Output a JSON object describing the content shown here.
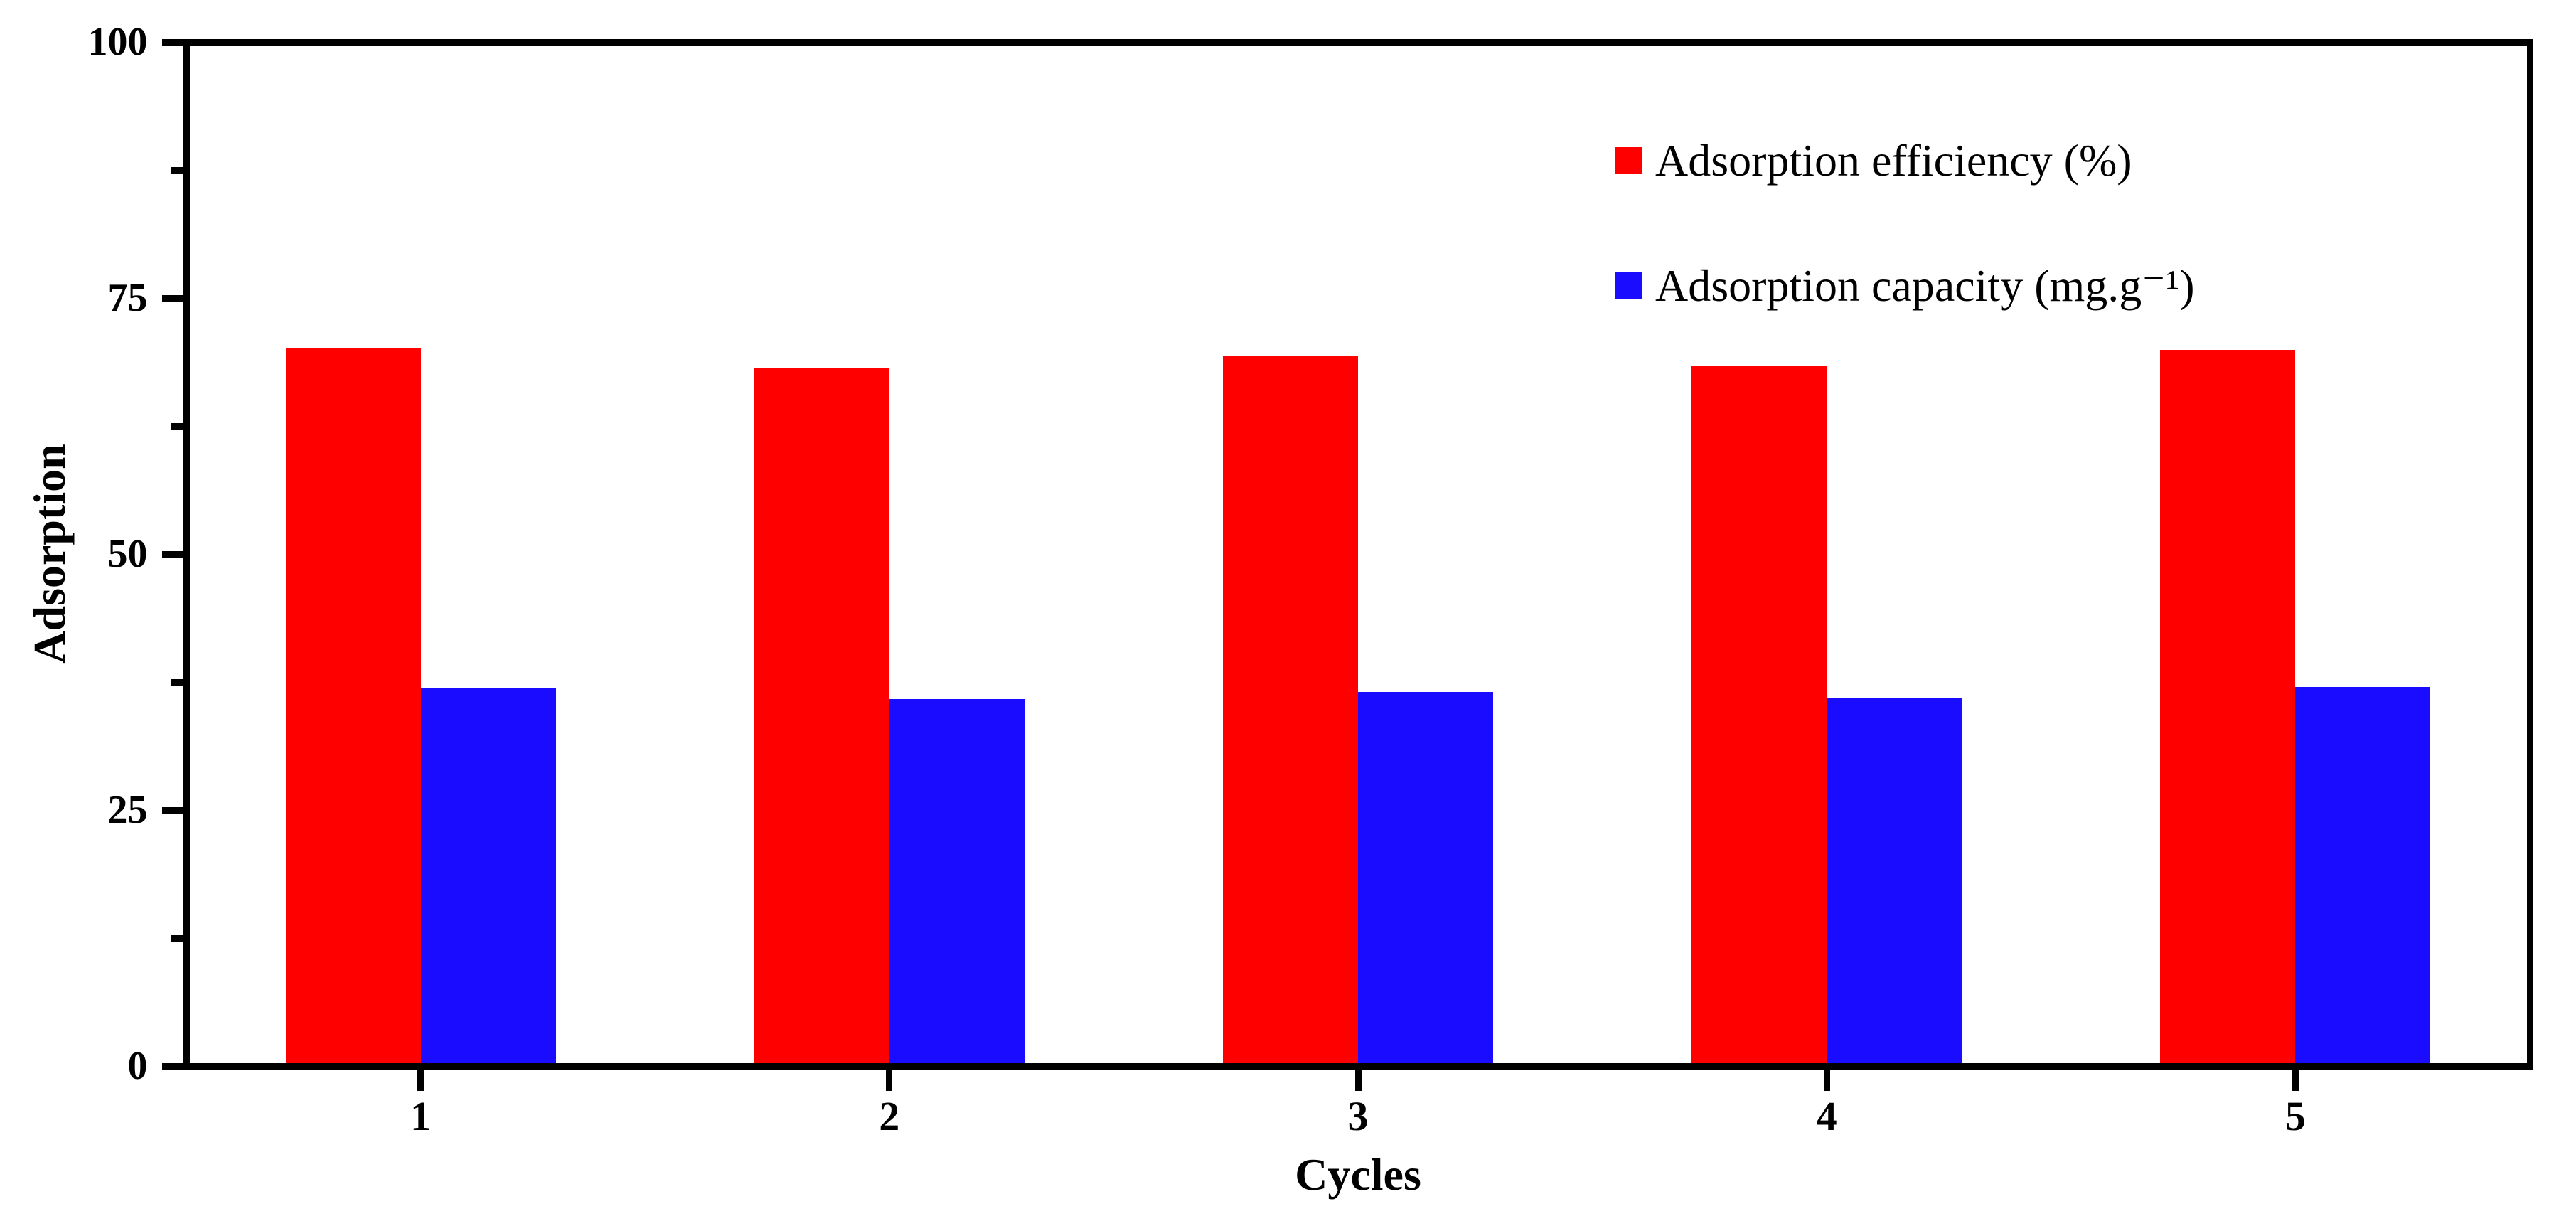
{
  "figure": {
    "background": "#ffffff",
    "frame_color": "#000000"
  },
  "chart_data": {
    "type": "bar",
    "title": "",
    "categories": [
      "1",
      "2",
      "3",
      "4",
      "5"
    ],
    "series": [
      {
        "name": "Adsorption efficiency (%)",
        "color": "#ff0000",
        "values": [
          70.1,
          68.2,
          69.3,
          68.3,
          69.9
        ]
      },
      {
        "name": "Adsorption capacity (mg.g⁻¹)",
        "color": "#1a0dff",
        "values": [
          36.9,
          35.8,
          36.5,
          35.9,
          37.0
        ]
      }
    ],
    "xlabel": "Cycles",
    "ylabel": "Adsorption",
    "ylim": [
      0,
      100
    ],
    "y_major_ticks": [
      0,
      25,
      50,
      75,
      100
    ],
    "y_minor_ticks": [
      12.5,
      37.5,
      62.5,
      87.5
    ],
    "x_tick_labels": [
      "1",
      "2",
      "3",
      "4",
      "5"
    ],
    "grid": false,
    "frame": true,
    "legend_position": "top-right"
  }
}
